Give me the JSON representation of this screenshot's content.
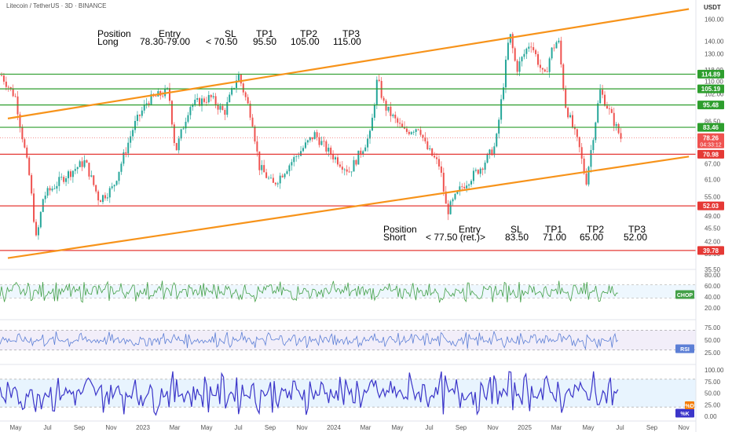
{
  "header": {
    "title": "Litecoin / TetherUS · 3D · BINANCE",
    "unit": "USDT"
  },
  "colors": {
    "candle_up": "#26a69a",
    "candle_down": "#ef5350",
    "resistance": "#2e9e2e",
    "support": "#e53935",
    "channel": "#f7931a",
    "chop": "#43a047",
    "rsi": "#5c7fd6",
    "stoch": "#3b35c9",
    "stoch_d": "#f57c00"
  },
  "long_trade": {
    "headers": [
      "Position",
      "Entry",
      "SL",
      "TP1",
      "TP2",
      "TP3"
    ],
    "values": [
      "Long",
      "78.30-79.00",
      "< 70.50",
      "95.50",
      "105.00",
      "115.00"
    ]
  },
  "short_trade": {
    "headers": [
      "Position",
      "Entry",
      "SL",
      "TP1",
      "TP2",
      "TP3"
    ],
    "values": [
      "Short",
      "< 77.50 (ret.)>",
      "83.50",
      "71.00",
      "65.00",
      "52.00"
    ]
  },
  "chart_data": [
    {
      "type": "candlestick",
      "title": "Litecoin / TetherUS · 3D · BINANCE",
      "y_scale": "log",
      "y_ticks": [
        160,
        140,
        130,
        118,
        110,
        102,
        86.5,
        67,
        61,
        55,
        49,
        45.5,
        42,
        39,
        35.5
      ],
      "x_ticks": [
        "May",
        "Jul",
        "Sep",
        "Nov",
        "2023",
        "Mar",
        "May",
        "Jul",
        "Sep",
        "Nov",
        "2024",
        "Mar",
        "May",
        "Jul",
        "Sep",
        "Nov",
        "2025",
        "Mar",
        "May",
        "Jul",
        "Sep",
        "Nov"
      ],
      "price_path": [
        [
          0,
          114
        ],
        [
          0.02,
          100
        ],
        [
          0.04,
          62
        ],
        [
          0.05,
          42
        ],
        [
          0.06,
          55
        ],
        [
          0.09,
          62
        ],
        [
          0.12,
          68
        ],
        [
          0.14,
          54
        ],
        [
          0.16,
          58
        ],
        [
          0.19,
          84
        ],
        [
          0.21,
          98
        ],
        [
          0.24,
          104
        ],
        [
          0.25,
          72
        ],
        [
          0.27,
          95
        ],
        [
          0.3,
          100
        ],
        [
          0.32,
          91
        ],
        [
          0.34,
          115
        ],
        [
          0.36,
          88
        ],
        [
          0.37,
          66
        ],
        [
          0.39,
          59
        ],
        [
          0.42,
          69
        ],
        [
          0.45,
          80
        ],
        [
          0.47,
          72
        ],
        [
          0.5,
          64
        ],
        [
          0.53,
          80
        ],
        [
          0.54,
          112
        ],
        [
          0.55,
          95
        ],
        [
          0.57,
          85
        ],
        [
          0.58,
          81
        ],
        [
          0.6,
          84
        ],
        [
          0.61,
          74
        ],
        [
          0.63,
          66
        ],
        [
          0.64,
          50
        ],
        [
          0.66,
          58
        ],
        [
          0.69,
          66
        ],
        [
          0.71,
          75
        ],
        [
          0.72,
          104
        ],
        [
          0.73,
          148
        ],
        [
          0.74,
          118
        ],
        [
          0.76,
          140
        ],
        [
          0.78,
          112
        ],
        [
          0.79,
          132
        ],
        [
          0.8,
          142
        ],
        [
          0.81,
          96
        ],
        [
          0.83,
          74
        ],
        [
          0.84,
          60
        ],
        [
          0.86,
          104
        ],
        [
          0.87,
          95
        ],
        [
          0.89,
          78.26
        ]
      ],
      "last_price": 78.26,
      "countdown": "04:33:12",
      "levels": {
        "resistance": [
          114.89,
          105.19,
          95.48,
          83.46
        ],
        "support": [
          70.98,
          52.03,
          39.78
        ]
      },
      "channel": {
        "upper": [
          [
            0,
            88
          ],
          [
            0.99,
            170
          ]
        ],
        "lower": [
          [
            0,
            38
          ],
          [
            0.99,
            70
          ]
        ]
      }
    },
    {
      "type": "line",
      "series": [
        {
          "name": "CHOP",
          "last": 53
        }
      ],
      "ylim": [
        20,
        80
      ],
      "y_ticks": [
        80,
        60,
        40,
        20
      ],
      "band": [
        38.2,
        61.8
      ]
    },
    {
      "type": "line",
      "series": [
        {
          "name": "RSI",
          "last": 40
        }
      ],
      "ylim": [
        20,
        80
      ],
      "y_ticks": [
        75,
        50,
        25
      ],
      "band": [
        30,
        70
      ]
    },
    {
      "type": "line",
      "series": [
        {
          "name": "%K",
          "last": 5
        },
        {
          "name": "%D",
          "last": 12
        }
      ],
      "ylim": [
        0,
        100
      ],
      "y_ticks": [
        100,
        75,
        50,
        25,
        0
      ],
      "band": [
        20,
        80
      ],
      "labels": {
        "d": "%D",
        "k": "%K"
      }
    }
  ],
  "price_labels": {
    "l1": "114.89",
    "l2": "105.19",
    "l3": "95.48",
    "l4": "83.46",
    "last": "78.26",
    "count": "04:33:12",
    "l5": "70.98",
    "l6": "52.03",
    "l7": "39.78"
  },
  "indicator_labels": {
    "chop": "CHOP",
    "rsi": "RSI",
    "k": "%K",
    "d": "%D"
  }
}
